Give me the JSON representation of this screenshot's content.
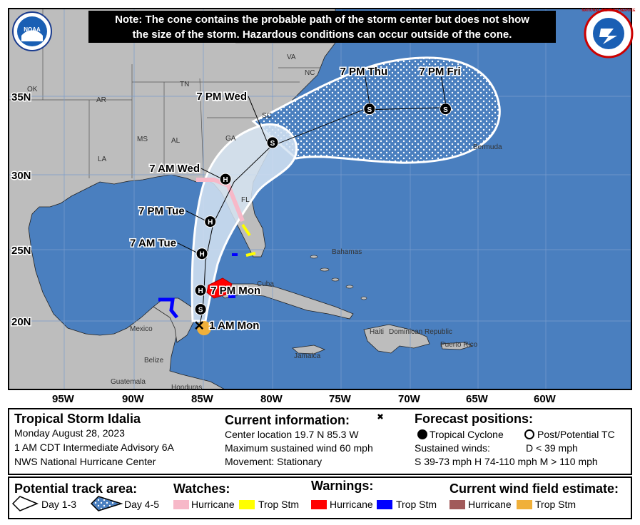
{
  "note": {
    "line1": "Note: The cone contains the probable path of the storm center but does not show",
    "line2": "the size of the storm. Hazardous conditions can occur outside of the cone."
  },
  "logos": {
    "noaa": "NOAA",
    "nws": "NATIONAL WEATHER SERVICE"
  },
  "map": {
    "lat_labels": [
      "35N",
      "30N",
      "25N",
      "20N"
    ],
    "lon_labels": [
      "95W",
      "90W",
      "85W",
      "80W",
      "75W",
      "70W",
      "65W",
      "60W"
    ],
    "states": [
      "OK",
      "AR",
      "TN",
      "MS",
      "AL",
      "GA",
      "SC",
      "NC",
      "VA",
      "LA",
      "FL"
    ],
    "places": [
      "Bermuda",
      "Bahamas",
      "Cuba",
      "Mexico",
      "Belize",
      "Guatemala",
      "Honduras",
      "Jamaica",
      "Haiti",
      "Dominican Republic",
      "Puerto Rico"
    ],
    "forecast_points": [
      {
        "time": "1 AM Mon",
        "lat": 19.7,
        "lon": -85.3,
        "symbol": "current"
      },
      {
        "time": "",
        "lat": 20.8,
        "lon": -85.2,
        "symbol": "S"
      },
      {
        "time": "7 PM Mon",
        "lat": 22.1,
        "lon": -85.2,
        "symbol": "H"
      },
      {
        "time": "7 AM Tue",
        "lat": 24.6,
        "lon": -85.1,
        "symbol": "H"
      },
      {
        "time": "7 PM Tue",
        "lat": 26.8,
        "lon": -84.5,
        "symbol": "H"
      },
      {
        "time": "7 AM Wed",
        "lat": 29.7,
        "lon": -83.4,
        "symbol": "H"
      },
      {
        "time": "7 PM Wed",
        "lat": 32.2,
        "lon": -80.0,
        "symbol": "S"
      },
      {
        "time": "7 PM Thu",
        "lat": 34.5,
        "lon": -73.0,
        "symbol": "S"
      },
      {
        "time": "7 PM Fri",
        "lat": 34.5,
        "lon": -67.5,
        "symbol": "S"
      }
    ]
  },
  "storm": {
    "name": "Tropical Storm Idalia",
    "date": "Monday August 28, 2023",
    "advisory": "1 AM CDT Intermediate Advisory 6A",
    "center": "NWS National Hurricane Center"
  },
  "current": {
    "title": "Current information:",
    "location": "Center location 19.7 N 85.3 W",
    "wind": "Maximum sustained wind 60 mph",
    "movement": "Movement: Stationary"
  },
  "forecast": {
    "title": "Forecast positions:",
    "tc": "Tropical Cyclone",
    "post": "Post/Potential TC",
    "sustained": "Sustained winds:",
    "d": "D < 39 mph",
    "shm": "S 39-73 mph  H 74-110 mph  M > 110 mph"
  },
  "legend": {
    "track_title": "Potential track area:",
    "day13": "Day 1-3",
    "day45": "Day 4-5",
    "watches_title": "Watches:",
    "warnings_title": "Warnings:",
    "wind_title": "Current wind field estimate:",
    "hurricane": "Hurricane",
    "tropstm": "Trop Stm"
  },
  "colors": {
    "ocean": "#4a7fbf",
    "land": "#bdbdbd",
    "hurricane_watch": "#f7b8c8",
    "tropstm_watch": "#ffff00",
    "hurricane_warning": "#ff0000",
    "tropstm_warning": "#0000ff",
    "hurricane_wind": "#a15a5a",
    "tropstm_wind": "#f0b03a"
  }
}
